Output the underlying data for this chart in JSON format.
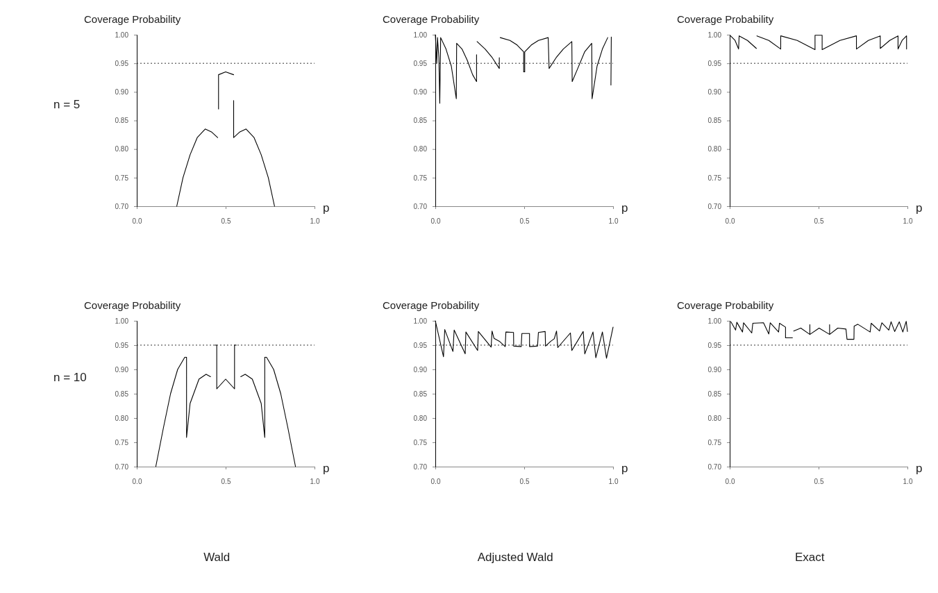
{
  "chart_data": [
    {
      "type": "line",
      "title": "n = 5",
      "ylabel": "Coverage Probability",
      "xlabel": "p",
      "xlim": [
        0,
        1
      ],
      "ylim": [
        0.7,
        1.0
      ],
      "xticks": [
        {
          "value": 0,
          "label": "0.0"
        },
        {
          "value": 0.5,
          "label": "0.5"
        },
        {
          "value": 1,
          "label": "1.0"
        }
      ],
      "yticks": [
        {
          "value": 0.7,
          "label": "0.70"
        },
        {
          "value": 0.75,
          "label": "0.75"
        },
        {
          "value": 0.8,
          "label": "0.80"
        },
        {
          "value": 0.85,
          "label": "0.85"
        },
        {
          "value": 0.9,
          "label": "0.90"
        },
        {
          "value": 0.95,
          "label": "0.95"
        },
        {
          "value": 1.0,
          "label": "1.00"
        }
      ],
      "ref_lines": [
        {
          "axis": "y",
          "value": 0.95,
          "line_style": "dotted"
        }
      ],
      "series": [
        {
          "color": "#000000",
          "x": [
            0.225,
            0.26,
            0.3,
            0.34,
            0.385,
            0.42,
            0.455,
            null,
            0.46,
            0.46,
            0.5,
            0.545,
            null,
            0.545,
            0.545,
            0.58,
            0.615,
            0.66,
            0.7,
            0.74,
            0.775
          ],
          "values": [
            0.7,
            0.75,
            0.79,
            0.82,
            0.835,
            0.83,
            0.82,
            null,
            0.87,
            0.93,
            0.935,
            0.93,
            null,
            0.885,
            0.82,
            0.83,
            0.835,
            0.82,
            0.79,
            0.75,
            0.7
          ]
        }
      ]
    },
    {
      "type": "line",
      "ylabel": "Coverage Probability",
      "xlabel": "p",
      "xlim": [
        0,
        1
      ],
      "ylim": [
        0.7,
        1.0
      ],
      "xticks": [
        {
          "value": 0,
          "label": "0.0"
        },
        {
          "value": 0.5,
          "label": "0.5"
        },
        {
          "value": 1,
          "label": "1.0"
        }
      ],
      "yticks": [
        {
          "value": 0.7,
          "label": "0.70"
        },
        {
          "value": 0.75,
          "label": "0.75"
        },
        {
          "value": 0.8,
          "label": "0.80"
        },
        {
          "value": 0.85,
          "label": "0.85"
        },
        {
          "value": 0.9,
          "label": "0.90"
        },
        {
          "value": 0.95,
          "label": "0.95"
        },
        {
          "value": 1.0,
          "label": "1.00"
        }
      ],
      "ref_lines": [
        {
          "axis": "y",
          "value": 0.95,
          "line_style": "dotted"
        }
      ],
      "series": [
        {
          "color": "#000000",
          "x": [
            0,
            0.008,
            0.012,
            0.02,
            0.025,
            0.03,
            0.06,
            0.09,
            0.118,
            0.12,
            0.15,
            0.18,
            0.21,
            0.232,
            0.232,
            null,
            0.235,
            0.28,
            0.32,
            0.36,
            0.36,
            null,
            0.365,
            0.42,
            0.46,
            0.497,
            0.497,
            0.503,
            0.503,
            0.54,
            0.58,
            0.635,
            0.64,
            0.68,
            0.72,
            0.768,
            0.77,
            0.8,
            0.84,
            0.88,
            0.882,
            0.91,
            0.94,
            0.97,
            null,
            0.988,
            0.99
          ],
          "values": [
            1.0,
            0.95,
            0.995,
            0.96,
            0.88,
            0.995,
            0.975,
            0.945,
            0.888,
            0.985,
            0.975,
            0.955,
            0.93,
            0.918,
            0.965,
            null,
            0.988,
            0.975,
            0.96,
            0.941,
            0.96,
            null,
            0.995,
            0.99,
            0.982,
            0.97,
            0.935,
            0.935,
            0.97,
            0.982,
            0.99,
            0.995,
            0.941,
            0.96,
            0.975,
            0.988,
            0.918,
            0.94,
            0.97,
            0.985,
            0.888,
            0.945,
            0.975,
            0.995,
            null,
            0.912,
            0.996
          ]
        }
      ]
    },
    {
      "type": "line",
      "ylabel": "Coverage Probability",
      "xlabel": "p",
      "xlim": [
        0,
        1
      ],
      "ylim": [
        0.7,
        1.0
      ],
      "xticks": [
        {
          "value": 0,
          "label": "0.0"
        },
        {
          "value": 0.5,
          "label": "0.5"
        },
        {
          "value": 1,
          "label": "1.0"
        }
      ],
      "yticks": [
        {
          "value": 0.7,
          "label": "0.70"
        },
        {
          "value": 0.75,
          "label": "0.75"
        },
        {
          "value": 0.8,
          "label": "0.80"
        },
        {
          "value": 0.85,
          "label": "0.85"
        },
        {
          "value": 0.9,
          "label": "0.90"
        },
        {
          "value": 0.95,
          "label": "0.95"
        },
        {
          "value": 1.0,
          "label": "1.00"
        }
      ],
      "ref_lines": [
        {
          "axis": "y",
          "value": 0.95,
          "line_style": "dotted"
        }
      ],
      "series": [
        {
          "color": "#000000",
          "x": [
            0.005,
            0.03,
            0.05,
            0.053,
            0.1,
            0.15,
            null,
            0.153,
            0.22,
            0.287,
            0.287,
            0.38,
            0.48,
            0.48,
            0.52,
            0.52,
            0.62,
            0.713,
            0.713,
            0.78,
            0.847,
            0.847,
            0.9,
            0.947,
            0.947,
            0.97,
            0.995,
            0.995
          ],
          "values": [
            0.998,
            0.99,
            0.975,
            0.998,
            0.99,
            0.976,
            null,
            0.998,
            0.99,
            0.975,
            0.998,
            0.99,
            0.974,
            0.999,
            0.999,
            0.974,
            0.99,
            0.998,
            0.975,
            0.99,
            0.998,
            0.976,
            0.99,
            0.998,
            0.975,
            0.99,
            0.998,
            0.975
          ]
        }
      ]
    },
    {
      "type": "line",
      "title": "n = 10",
      "ylabel": "Coverage Probability",
      "xlabel": "p",
      "annotations": [
        "Wald"
      ],
      "xlim": [
        0,
        1
      ],
      "ylim": [
        0.7,
        1.0
      ],
      "xticks": [
        {
          "value": 0,
          "label": "0.0"
        },
        {
          "value": 0.5,
          "label": "0.5"
        },
        {
          "value": 1,
          "label": "1.0"
        }
      ],
      "yticks": [
        {
          "value": 0.7,
          "label": "0.70"
        },
        {
          "value": 0.75,
          "label": "0.75"
        },
        {
          "value": 0.8,
          "label": "0.80"
        },
        {
          "value": 0.85,
          "label": "0.85"
        },
        {
          "value": 0.9,
          "label": "0.90"
        },
        {
          "value": 0.95,
          "label": "0.95"
        },
        {
          "value": 1.0,
          "label": "1.00"
        }
      ],
      "ref_lines": [
        {
          "axis": "y",
          "value": 0.95,
          "line_style": "dotted"
        }
      ],
      "series": [
        {
          "color": "#000000",
          "x": [
            0.107,
            0.15,
            0.19,
            0.23,
            0.27,
            0.28,
            0.28,
            0.3,
            0.35,
            0.39,
            0.415,
            null,
            0.44,
            0.45,
            0.45,
            0.5,
            0.55,
            0.55,
            0.56,
            null,
            0.585,
            0.61,
            0.65,
            0.7,
            0.72,
            0.72,
            0.73,
            0.77,
            0.81,
            0.85,
            0.893
          ],
          "values": [
            0.7,
            0.78,
            0.85,
            0.9,
            0.925,
            0.925,
            0.76,
            0.83,
            0.88,
            0.89,
            0.885,
            null,
            0.95,
            0.95,
            0.86,
            0.88,
            0.86,
            0.95,
            0.95,
            null,
            0.885,
            0.89,
            0.88,
            0.83,
            0.76,
            0.925,
            0.925,
            0.9,
            0.85,
            0.78,
            0.7
          ]
        }
      ]
    },
    {
      "type": "line",
      "ylabel": "Coverage Probability",
      "xlabel": "p",
      "annotations": [
        "Adjusted Wald"
      ],
      "xlim": [
        0,
        1
      ],
      "ylim": [
        0.7,
        1.0
      ],
      "xticks": [
        {
          "value": 0,
          "label": "0.0"
        },
        {
          "value": 0.5,
          "label": "0.5"
        },
        {
          "value": 1,
          "label": "1.0"
        }
      ],
      "yticks": [
        {
          "value": 0.7,
          "label": "0.70"
        },
        {
          "value": 0.75,
          "label": "0.75"
        },
        {
          "value": 0.8,
          "label": "0.80"
        },
        {
          "value": 0.85,
          "label": "0.85"
        },
        {
          "value": 0.9,
          "label": "0.90"
        },
        {
          "value": 0.95,
          "label": "0.95"
        },
        {
          "value": 1.0,
          "label": "1.00"
        }
      ],
      "ref_lines": [
        {
          "axis": "y",
          "value": 0.95,
          "line_style": "dotted"
        }
      ],
      "series": [
        {
          "color": "#000000",
          "x": [
            0,
            0.046,
            0.053,
            0.099,
            0.106,
            0.168,
            0.172,
            0.238,
            0.242,
            0.314,
            0.319,
            0.33,
            0.36,
            0.393,
            0.397,
            0.44,
            0.441,
            0.483,
            0.487,
            0.53,
            0.53,
            0.575,
            0.58,
            0.618,
            0.62,
            0.65,
            0.669,
            0.682,
            0.689,
            0.76,
            0.768,
            0.832,
            0.841,
            0.887,
            0.903,
            0.94,
            0.963,
            1.0
          ],
          "values": [
            1.0,
            0.926,
            0.982,
            0.937,
            0.981,
            0.932,
            0.977,
            0.939,
            0.978,
            0.946,
            0.979,
            0.964,
            0.958,
            0.947,
            0.977,
            0.976,
            0.948,
            0.947,
            0.974,
            0.974,
            0.947,
            0.948,
            0.976,
            0.978,
            0.948,
            0.958,
            0.963,
            0.979,
            0.945,
            0.975,
            0.939,
            0.978,
            0.932,
            0.977,
            0.924,
            0.977,
            0.923,
            0.987
          ]
        }
      ]
    },
    {
      "type": "line",
      "ylabel": "Coverage Probability",
      "xlabel": "p",
      "annotations": [
        "Exact"
      ],
      "xlim": [
        0,
        1
      ],
      "ylim": [
        0.7,
        1.0
      ],
      "xticks": [
        {
          "value": 0,
          "label": "0.0"
        },
        {
          "value": 0.5,
          "label": "0.5"
        },
        {
          "value": 1,
          "label": "1.0"
        }
      ],
      "yticks": [
        {
          "value": 0.7,
          "label": "0.70"
        },
        {
          "value": 0.75,
          "label": "0.75"
        },
        {
          "value": 0.8,
          "label": "0.80"
        },
        {
          "value": 0.85,
          "label": "0.85"
        },
        {
          "value": 0.9,
          "label": "0.90"
        },
        {
          "value": 0.95,
          "label": "0.95"
        },
        {
          "value": 1.0,
          "label": "1.00"
        }
      ],
      "ref_lines": [
        {
          "axis": "y",
          "value": 0.95,
          "line_style": "dotted"
        }
      ],
      "series": [
        {
          "color": "#000000",
          "x": [
            0.007,
            0.033,
            0.04,
            0.072,
            0.078,
            0.124,
            0.13,
            0.19,
            0.22,
            0.228,
            0.275,
            0.28,
            0.314,
            0.314,
            0.353,
            null,
            0.36,
            0.4,
            0.451,
            0.451,
            0.451,
            0.503,
            0.562,
            0.562,
            0.562,
            0.608,
            0.654,
            0.66,
            0.699,
            0.7,
            0.72,
            0.79,
            0.796,
            0.843,
            0.856,
            0.895,
            0.908,
            0.928,
            0.954,
            0.974,
            0.993,
            1.0
          ],
          "values": [
            0.998,
            0.981,
            0.997,
            0.977,
            0.996,
            0.975,
            0.995,
            0.996,
            0.973,
            0.996,
            0.977,
            0.995,
            0.987,
            0.965,
            0.965,
            null,
            0.979,
            0.985,
            0.972,
            0.992,
            0.972,
            0.985,
            0.972,
            0.992,
            0.972,
            0.985,
            0.983,
            0.962,
            0.962,
            0.989,
            0.993,
            0.977,
            0.995,
            0.979,
            0.996,
            0.981,
            0.998,
            0.978,
            0.998,
            0.977,
            0.999,
            0.978
          ]
        }
      ]
    }
  ]
}
